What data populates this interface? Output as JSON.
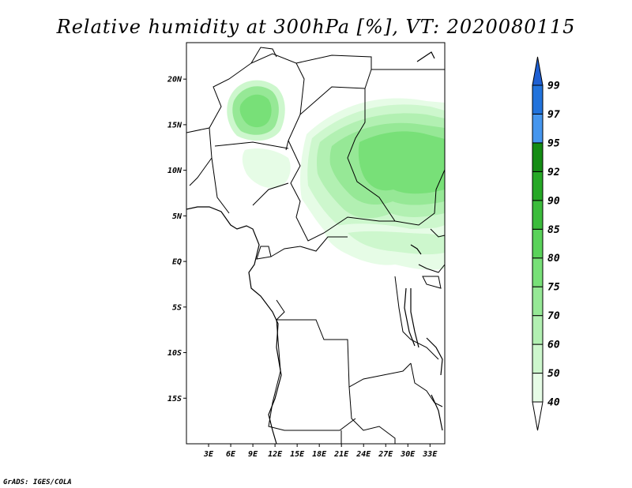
{
  "title": "Relative humidity at 300hPa [%], VT: 2020080115",
  "credit": "GrADS: IGES/COLA",
  "map": {
    "lon_range": [
      0,
      35
    ],
    "lat_range": [
      -20,
      24
    ],
    "lat_ticks": [
      {
        "value": 20,
        "label": "20N"
      },
      {
        "value": 15,
        "label": "15N"
      },
      {
        "value": 10,
        "label": "10N"
      },
      {
        "value": 5,
        "label": "5N"
      },
      {
        "value": 0,
        "label": "EQ"
      },
      {
        "value": -5,
        "label": "5S"
      },
      {
        "value": -10,
        "label": "10S"
      },
      {
        "value": -15,
        "label": "15S"
      }
    ],
    "lon_ticks": [
      {
        "value": 3,
        "label": "3E"
      },
      {
        "value": 6,
        "label": "6E"
      },
      {
        "value": 9,
        "label": "9E"
      },
      {
        "value": 12,
        "label": "12E"
      },
      {
        "value": 15,
        "label": "15E"
      },
      {
        "value": 18,
        "label": "18E"
      },
      {
        "value": 21,
        "label": "21E"
      },
      {
        "value": 24,
        "label": "24E"
      },
      {
        "value": 27,
        "label": "27E"
      },
      {
        "value": 30,
        "label": "30E"
      },
      {
        "value": 33,
        "label": "33E"
      }
    ]
  },
  "legend": {
    "levels": [
      {
        "label": "40",
        "color": "#ffffff"
      },
      {
        "label": "50",
        "color": "#e6fce6"
      },
      {
        "label": "60",
        "color": "#cdf7cd"
      },
      {
        "label": "70",
        "color": "#b2f0b2"
      },
      {
        "label": "75",
        "color": "#96e896"
      },
      {
        "label": "80",
        "color": "#78e078"
      },
      {
        "label": "85",
        "color": "#5ad25a"
      },
      {
        "label": "90",
        "color": "#3cbc3c"
      },
      {
        "label": "92",
        "color": "#26a826"
      },
      {
        "label": "95",
        "color": "#148c14"
      },
      {
        "label": "97",
        "color": "#4696ee"
      },
      {
        "label": "99",
        "color": "#2273dc"
      }
    ],
    "top_color": "#1e5fd2"
  }
}
